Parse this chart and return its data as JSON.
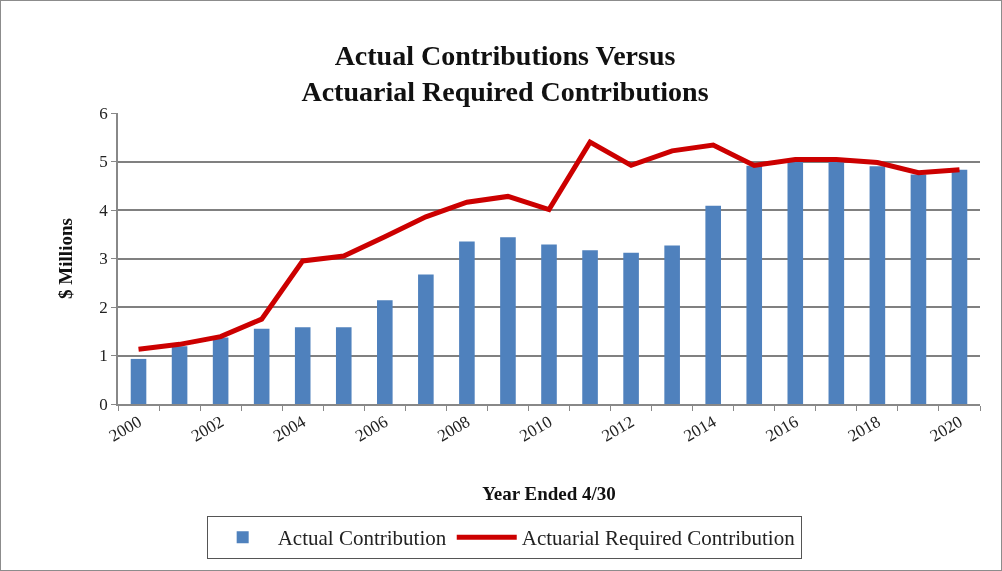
{
  "chart_data": {
    "type": "bar",
    "title": "Actual Contributions Versus\nActuarial Required Contributions",
    "xlabel": "Year Ended 4/30",
    "ylabel": "$ Millions",
    "categories": [
      "2000",
      null,
      "2002",
      null,
      "2004",
      null,
      "2006",
      null,
      "2008",
      null,
      "2010",
      null,
      "2012",
      null,
      "2014",
      null,
      "2016",
      null,
      "2018",
      null,
      "2020"
    ],
    "series": [
      {
        "name": "Actual Contribution",
        "color": "#4f81bd",
        "values": [
          0.93,
          1.19,
          1.37,
          1.55,
          1.58,
          1.58,
          2.14,
          2.67,
          3.35,
          3.44,
          3.29,
          3.17,
          3.12,
          3.27,
          4.09,
          4.91,
          5.0,
          5.0,
          4.9,
          4.73,
          4.83
        ]
      },
      {
        "name": "Actuarial Required Contribution",
        "type": "line",
        "color": "#cc0000",
        "values": [
          1.13,
          1.23,
          1.39,
          1.75,
          2.95,
          3.05,
          3.45,
          3.86,
          4.16,
          4.28,
          4.01,
          5.4,
          4.92,
          5.22,
          5.34,
          4.92,
          5.04,
          5.04,
          4.98,
          4.77,
          4.83
        ]
      }
    ],
    "ylim": [
      0,
      6
    ],
    "yticks": [
      0,
      1,
      2,
      3,
      4,
      5,
      6
    ],
    "grid": "y",
    "legend": "bottom",
    "marker": "none",
    "line_style": "solid"
  }
}
